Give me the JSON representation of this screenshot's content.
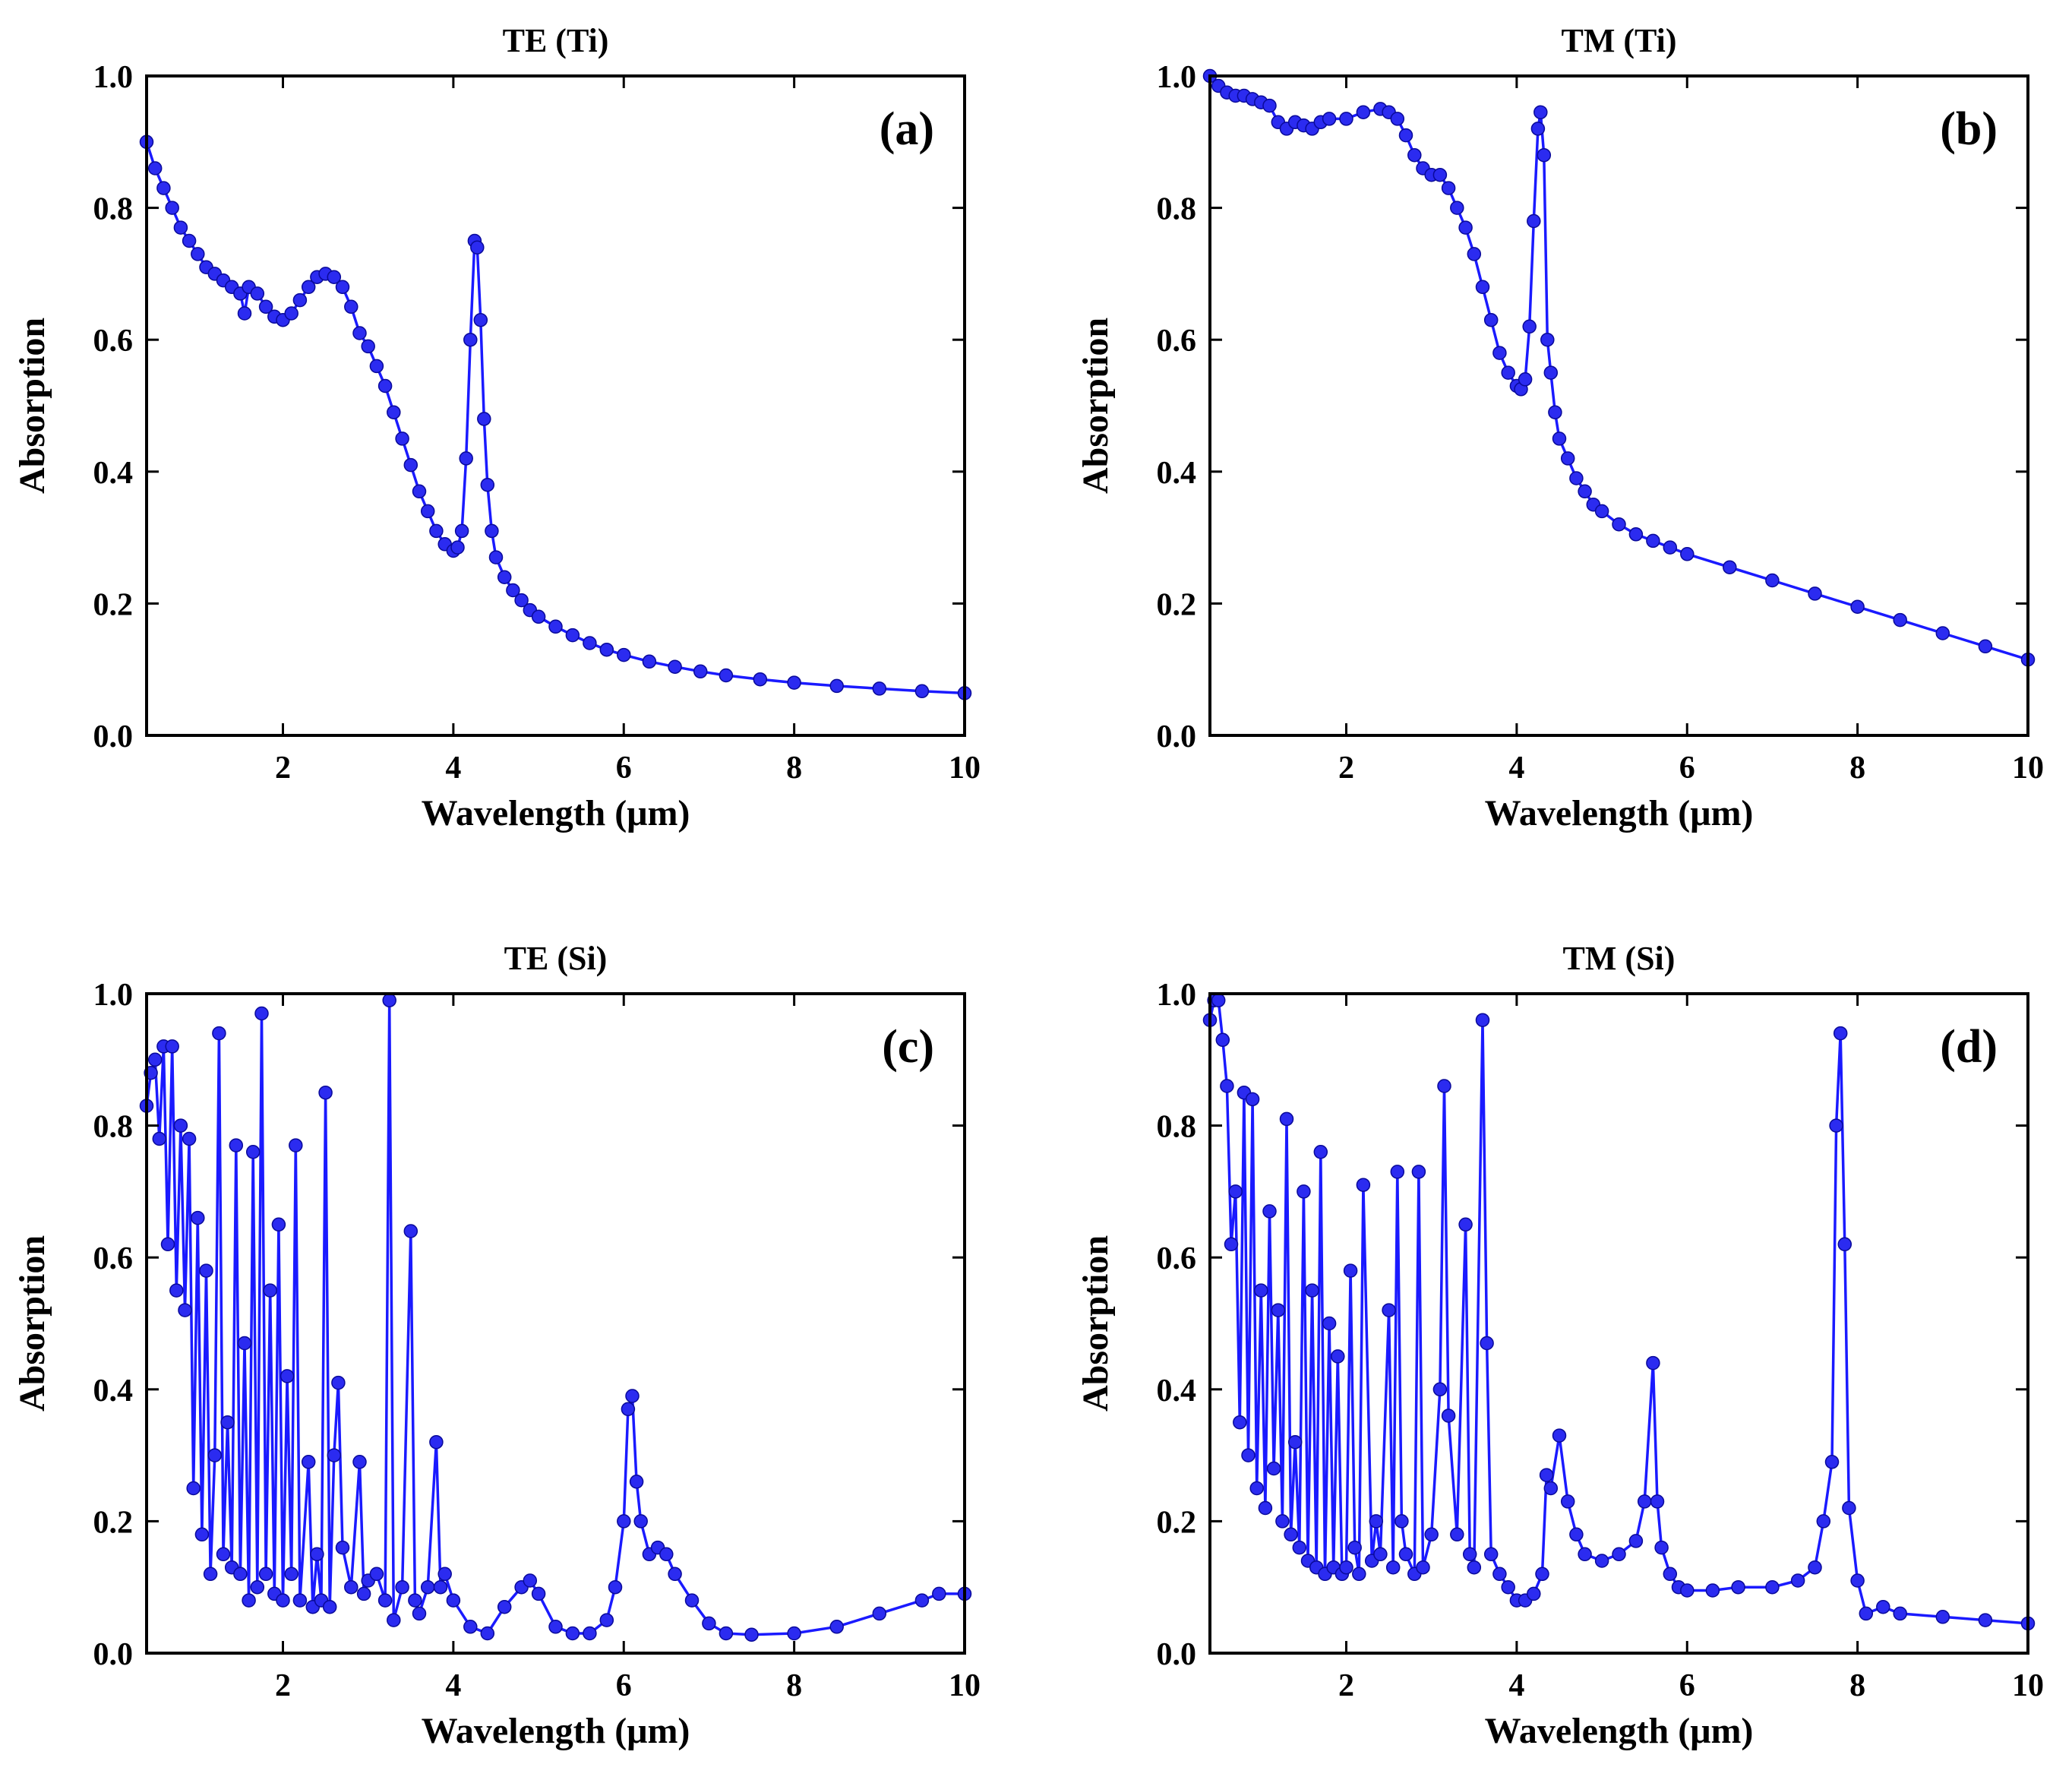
{
  "colors": {
    "series": "#1a1aff",
    "marker": "#2b2bf0",
    "axis": "#000000"
  },
  "chart_data": [
    {
      "type": "line",
      "title": "TE (Ti)",
      "panel_label": "(a)",
      "xlabel": "Wavelength (μm)",
      "ylabel": "Absorption",
      "xlim": [
        0.4,
        10
      ],
      "ylim": [
        0,
        1
      ],
      "xticks": [
        2,
        4,
        6,
        8,
        10
      ],
      "xtick_labels": [
        "2",
        "4",
        "6",
        "8",
        "10"
      ],
      "yticks": [
        0,
        0.2,
        0.4,
        0.6,
        0.8,
        1.0
      ],
      "ytick_labels": [
        "0.0",
        "0.2",
        "0.4",
        "0.6",
        "0.8",
        "1.0"
      ],
      "series": [
        {
          "name": "TE (Ti)",
          "x": [
            0.4,
            0.5,
            0.6,
            0.7,
            0.8,
            0.9,
            1.0,
            1.1,
            1.2,
            1.3,
            1.4,
            1.5,
            1.55,
            1.6,
            1.7,
            1.8,
            1.9,
            2.0,
            2.1,
            2.2,
            2.3,
            2.4,
            2.5,
            2.6,
            2.7,
            2.8,
            2.9,
            3.0,
            3.1,
            3.2,
            3.3,
            3.4,
            3.5,
            3.6,
            3.7,
            3.8,
            3.9,
            4.0,
            4.05,
            4.1,
            4.15,
            4.2,
            4.25,
            4.28,
            4.32,
            4.36,
            4.4,
            4.45,
            4.5,
            4.6,
            4.7,
            4.8,
            4.9,
            5.0,
            5.2,
            5.4,
            5.6,
            5.8,
            6.0,
            6.3,
            6.6,
            6.9,
            7.2,
            7.6,
            8.0,
            8.5,
            9.0,
            9.5,
            10.0
          ],
          "y": [
            0.9,
            0.86,
            0.83,
            0.8,
            0.77,
            0.75,
            0.73,
            0.71,
            0.7,
            0.69,
            0.68,
            0.67,
            0.64,
            0.68,
            0.67,
            0.65,
            0.635,
            0.63,
            0.64,
            0.66,
            0.68,
            0.695,
            0.7,
            0.695,
            0.68,
            0.65,
            0.61,
            0.59,
            0.56,
            0.53,
            0.49,
            0.45,
            0.41,
            0.37,
            0.34,
            0.31,
            0.29,
            0.28,
            0.285,
            0.31,
            0.42,
            0.6,
            0.75,
            0.74,
            0.63,
            0.48,
            0.38,
            0.31,
            0.27,
            0.24,
            0.22,
            0.205,
            0.19,
            0.18,
            0.165,
            0.152,
            0.14,
            0.13,
            0.122,
            0.112,
            0.104,
            0.097,
            0.091,
            0.085,
            0.08,
            0.075,
            0.071,
            0.067,
            0.064
          ]
        }
      ]
    },
    {
      "type": "line",
      "title": "TM (Ti)",
      "panel_label": "(b)",
      "xlabel": "Wavelength (μm)",
      "ylabel": "Absorption",
      "xlim": [
        0.4,
        10
      ],
      "ylim": [
        0,
        1
      ],
      "xticks": [
        2,
        4,
        6,
        8,
        10
      ],
      "xtick_labels": [
        "2",
        "4",
        "6",
        "8",
        "10"
      ],
      "yticks": [
        0,
        0.2,
        0.4,
        0.6,
        0.8,
        1.0
      ],
      "ytick_labels": [
        "0.0",
        "0.2",
        "0.4",
        "0.6",
        "0.8",
        "1.0"
      ],
      "series": [
        {
          "name": "TM (Ti)",
          "x": [
            0.4,
            0.5,
            0.6,
            0.7,
            0.8,
            0.9,
            1.0,
            1.1,
            1.2,
            1.3,
            1.4,
            1.5,
            1.6,
            1.7,
            1.8,
            2.0,
            2.2,
            2.4,
            2.5,
            2.6,
            2.7,
            2.8,
            2.9,
            3.0,
            3.1,
            3.2,
            3.3,
            3.4,
            3.5,
            3.6,
            3.7,
            3.8,
            3.9,
            4.0,
            4.05,
            4.1,
            4.15,
            4.2,
            4.25,
            4.28,
            4.32,
            4.36,
            4.4,
            4.45,
            4.5,
            4.6,
            4.7,
            4.8,
            4.9,
            5.0,
            5.2,
            5.4,
            5.6,
            5.8,
            6.0,
            6.5,
            7.0,
            7.5,
            8.0,
            8.5,
            9.0,
            9.5,
            10.0
          ],
          "y": [
            1.0,
            0.985,
            0.975,
            0.97,
            0.97,
            0.965,
            0.96,
            0.955,
            0.93,
            0.92,
            0.93,
            0.925,
            0.92,
            0.93,
            0.935,
            0.935,
            0.945,
            0.95,
            0.945,
            0.935,
            0.91,
            0.88,
            0.86,
            0.85,
            0.85,
            0.83,
            0.8,
            0.77,
            0.73,
            0.68,
            0.63,
            0.58,
            0.55,
            0.53,
            0.525,
            0.54,
            0.62,
            0.78,
            0.92,
            0.945,
            0.88,
            0.6,
            0.55,
            0.49,
            0.45,
            0.42,
            0.39,
            0.37,
            0.35,
            0.34,
            0.32,
            0.305,
            0.295,
            0.285,
            0.275,
            0.255,
            0.235,
            0.215,
            0.195,
            0.175,
            0.155,
            0.135,
            0.115
          ]
        }
      ]
    },
    {
      "type": "line",
      "title": "TE (Si)",
      "panel_label": "(c)",
      "xlabel": "Wavelength (μm)",
      "ylabel": "Absorption",
      "xlim": [
        0.4,
        10
      ],
      "ylim": [
        0,
        1
      ],
      "xticks": [
        2,
        4,
        6,
        8,
        10
      ],
      "xtick_labels": [
        "2",
        "4",
        "6",
        "8",
        "10"
      ],
      "yticks": [
        0,
        0.2,
        0.4,
        0.6,
        0.8,
        1.0
      ],
      "ytick_labels": [
        "0.0",
        "0.2",
        "0.4",
        "0.6",
        "0.8",
        "1.0"
      ],
      "series": [
        {
          "name": "TE (Si)",
          "x": [
            0.4,
            0.45,
            0.5,
            0.55,
            0.6,
            0.65,
            0.7,
            0.75,
            0.8,
            0.85,
            0.9,
            0.95,
            1.0,
            1.05,
            1.1,
            1.15,
            1.2,
            1.25,
            1.3,
            1.35,
            1.4,
            1.45,
            1.5,
            1.55,
            1.6,
            1.65,
            1.7,
            1.75,
            1.8,
            1.85,
            1.9,
            1.95,
            2.0,
            2.05,
            2.1,
            2.15,
            2.2,
            2.3,
            2.35,
            2.4,
            2.45,
            2.5,
            2.55,
            2.6,
            2.65,
            2.7,
            2.8,
            2.9,
            2.95,
            3.0,
            3.1,
            3.2,
            3.25,
            3.3,
            3.4,
            3.5,
            3.55,
            3.6,
            3.7,
            3.8,
            3.85,
            3.9,
            4.0,
            4.2,
            4.4,
            4.6,
            4.8,
            4.9,
            5.0,
            5.2,
            5.4,
            5.6,
            5.8,
            5.9,
            6.0,
            6.05,
            6.1,
            6.15,
            6.2,
            6.3,
            6.4,
            6.5,
            6.6,
            6.8,
            7.0,
            7.2,
            7.5,
            8.0,
            8.5,
            9.0,
            9.5,
            9.7,
            10.0
          ],
          "y": [
            0.83,
            0.88,
            0.9,
            0.78,
            0.92,
            0.62,
            0.92,
            0.55,
            0.8,
            0.52,
            0.78,
            0.25,
            0.66,
            0.18,
            0.58,
            0.12,
            0.3,
            0.94,
            0.15,
            0.35,
            0.13,
            0.77,
            0.12,
            0.47,
            0.08,
            0.76,
            0.1,
            0.97,
            0.12,
            0.55,
            0.09,
            0.65,
            0.08,
            0.42,
            0.12,
            0.77,
            0.08,
            0.29,
            0.07,
            0.15,
            0.08,
            0.85,
            0.07,
            0.3,
            0.41,
            0.16,
            0.1,
            0.29,
            0.09,
            0.11,
            0.12,
            0.08,
            0.99,
            0.05,
            0.1,
            0.64,
            0.08,
            0.06,
            0.1,
            0.32,
            0.1,
            0.12,
            0.08,
            0.04,
            0.03,
            0.07,
            0.1,
            0.11,
            0.09,
            0.04,
            0.03,
            0.03,
            0.05,
            0.1,
            0.2,
            0.37,
            0.39,
            0.26,
            0.2,
            0.15,
            0.16,
            0.15,
            0.12,
            0.08,
            0.045,
            0.03,
            0.028,
            0.03,
            0.04,
            0.06,
            0.08,
            0.09,
            0.09
          ]
        }
      ]
    },
    {
      "type": "line",
      "title": "TM (Si)",
      "panel_label": "(d)",
      "xlabel": "Wavelength (μm)",
      "ylabel": "Absorption",
      "xlim": [
        0.4,
        10
      ],
      "ylim": [
        0,
        1
      ],
      "xticks": [
        2,
        4,
        6,
        8,
        10
      ],
      "xtick_labels": [
        "2",
        "4",
        "6",
        "8",
        "10"
      ],
      "yticks": [
        0,
        0.2,
        0.4,
        0.6,
        0.8,
        1.0
      ],
      "ytick_labels": [
        "0.0",
        "0.2",
        "0.4",
        "0.6",
        "0.8",
        "1.0"
      ],
      "series": [
        {
          "name": "TM (Si)",
          "x": [
            0.4,
            0.45,
            0.5,
            0.55,
            0.6,
            0.65,
            0.7,
            0.75,
            0.8,
            0.85,
            0.9,
            0.95,
            1.0,
            1.05,
            1.1,
            1.15,
            1.2,
            1.25,
            1.3,
            1.35,
            1.4,
            1.45,
            1.5,
            1.55,
            1.6,
            1.65,
            1.7,
            1.75,
            1.8,
            1.85,
            1.9,
            1.95,
            2.0,
            2.05,
            2.1,
            2.15,
            2.2,
            2.3,
            2.35,
            2.4,
            2.5,
            2.55,
            2.6,
            2.65,
            2.7,
            2.8,
            2.85,
            2.9,
            3.0,
            3.1,
            3.15,
            3.2,
            3.3,
            3.4,
            3.45,
            3.5,
            3.6,
            3.65,
            3.7,
            3.8,
            3.9,
            4.0,
            4.1,
            4.2,
            4.3,
            4.35,
            4.4,
            4.5,
            4.6,
            4.7,
            4.8,
            5.0,
            5.2,
            5.4,
            5.5,
            5.6,
            5.65,
            5.7,
            5.8,
            5.9,
            6.0,
            6.3,
            6.6,
            7.0,
            7.3,
            7.5,
            7.6,
            7.7,
            7.75,
            7.8,
            7.85,
            7.9,
            8.0,
            8.1,
            8.3,
            8.5,
            9.0,
            9.5,
            10.0
          ],
          "y": [
            0.96,
            0.99,
            0.99,
            0.93,
            0.86,
            0.62,
            0.7,
            0.35,
            0.85,
            0.3,
            0.84,
            0.25,
            0.55,
            0.22,
            0.67,
            0.28,
            0.52,
            0.2,
            0.81,
            0.18,
            0.32,
            0.16,
            0.7,
            0.14,
            0.55,
            0.13,
            0.76,
            0.12,
            0.5,
            0.13,
            0.45,
            0.12,
            0.13,
            0.58,
            0.16,
            0.12,
            0.71,
            0.14,
            0.2,
            0.15,
            0.52,
            0.13,
            0.73,
            0.2,
            0.15,
            0.12,
            0.73,
            0.13,
            0.18,
            0.4,
            0.86,
            0.36,
            0.18,
            0.65,
            0.15,
            0.13,
            0.96,
            0.47,
            0.15,
            0.12,
            0.1,
            0.08,
            0.08,
            0.09,
            0.12,
            0.27,
            0.25,
            0.33,
            0.23,
            0.18,
            0.15,
            0.14,
            0.15,
            0.17,
            0.23,
            0.44,
            0.23,
            0.16,
            0.12,
            0.1,
            0.095,
            0.095,
            0.1,
            0.1,
            0.11,
            0.13,
            0.2,
            0.29,
            0.8,
            0.94,
            0.62,
            0.22,
            0.11,
            0.06,
            0.07,
            0.06,
            0.055,
            0.05,
            0.045
          ]
        }
      ]
    }
  ]
}
